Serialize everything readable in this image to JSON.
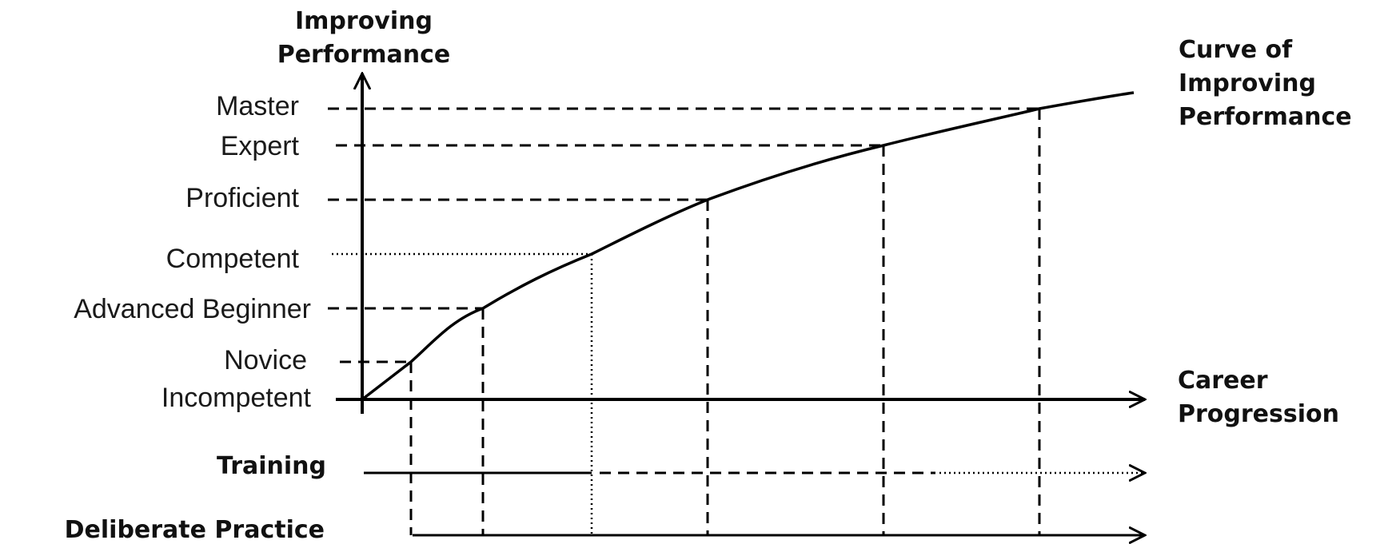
{
  "y_axis_title": [
    "Improving",
    "Performance"
  ],
  "x_axis_title": [
    "Career",
    "Progression"
  ],
  "curve_label": [
    "Curve of",
    "Improving",
    "Performance"
  ],
  "levels": [
    {
      "key": "incompetent",
      "label": "Incompetent"
    },
    {
      "key": "novice",
      "label": "Novice"
    },
    {
      "key": "advanced_beginner",
      "label": "Advanced Beginner"
    },
    {
      "key": "competent",
      "label": "Competent"
    },
    {
      "key": "proficient",
      "label": "Proficient"
    },
    {
      "key": "expert",
      "label": "Expert"
    },
    {
      "key": "master",
      "label": "Master"
    }
  ],
  "tracks": {
    "training": "Training",
    "deliberate_practice": "Deliberate Practice"
  }
}
